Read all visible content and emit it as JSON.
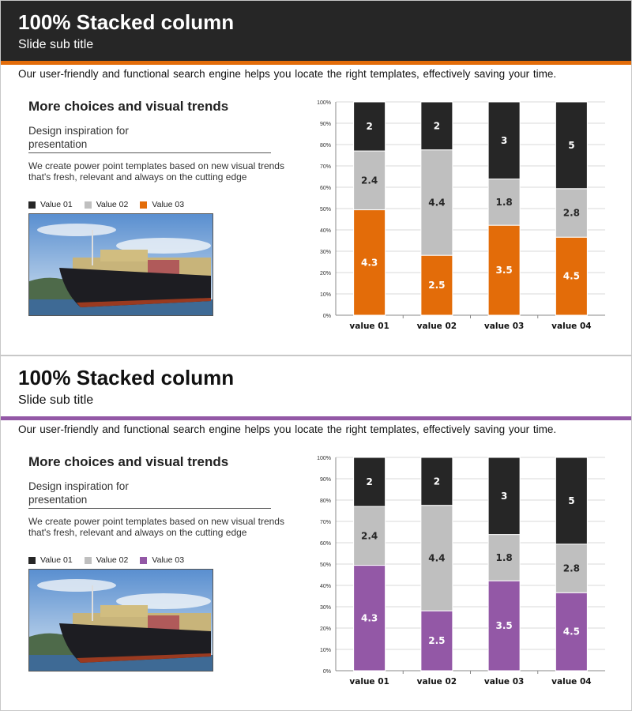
{
  "slides": [
    {
      "title": "100% Stacked column",
      "subtitle": "Slide sub title",
      "body": "Our user-friendly and functional search engine helps you locate the right templates, effectively saving your time.",
      "heading": "More choices and visual trends",
      "design": "Design inspiration for presentation",
      "desc": "We create power point templates based on new visual trends that's fresh, relevant and always on the cutting edge",
      "accent": "#e36c09",
      "legend": [
        "Value 01",
        "Value 02",
        "Value 03"
      ]
    },
    {
      "title": "100% Stacked column",
      "subtitle": "Slide sub title",
      "body": "Our user-friendly and functional search engine helps you locate the right templates, effectively saving your time.",
      "heading": "More choices and visual trends",
      "design": "Design inspiration for presentation",
      "desc": "We create power point templates based on new visual trends that's fresh, relevant and always on the cutting edge",
      "accent": "#9358a6",
      "legend": [
        "Value 01",
        "Value 02",
        "Value 03"
      ]
    }
  ],
  "colors": {
    "value01": "#262626",
    "value02": "#bfbfbf"
  },
  "chart_data": [
    {
      "type": "bar",
      "stacked": "percent",
      "categories": [
        "value 01",
        "value 02",
        "value 03",
        "value 04"
      ],
      "series": [
        {
          "name": "Value 03",
          "values": [
            4.3,
            2.5,
            3.5,
            4.5
          ],
          "color": "#e36c09"
        },
        {
          "name": "Value 02",
          "values": [
            2.4,
            4.4,
            1.8,
            2.8
          ],
          "color": "#bfbfbf"
        },
        {
          "name": "Value 01",
          "values": [
            2,
            2,
            3,
            5
          ],
          "color": "#262626"
        }
      ],
      "yticks": [
        "0%",
        "10%",
        "20%",
        "30%",
        "40%",
        "50%",
        "60%",
        "70%",
        "80%",
        "90%",
        "100%"
      ],
      "ylim": [
        0,
        100
      ],
      "grid": true,
      "legend": "left"
    },
    {
      "type": "bar",
      "stacked": "percent",
      "categories": [
        "value 01",
        "value 02",
        "value 03",
        "value 04"
      ],
      "series": [
        {
          "name": "Value 03",
          "values": [
            4.3,
            2.5,
            3.5,
            4.5
          ],
          "color": "#9358a6"
        },
        {
          "name": "Value 02",
          "values": [
            2.4,
            4.4,
            1.8,
            2.8
          ],
          "color": "#bfbfbf"
        },
        {
          "name": "Value 01",
          "values": [
            2,
            2,
            3,
            5
          ],
          "color": "#262626"
        }
      ],
      "yticks": [
        "0%",
        "10%",
        "20%",
        "30%",
        "40%",
        "50%",
        "60%",
        "70%",
        "80%",
        "90%",
        "100%"
      ],
      "ylim": [
        0,
        100
      ],
      "grid": true,
      "legend": "left"
    }
  ]
}
